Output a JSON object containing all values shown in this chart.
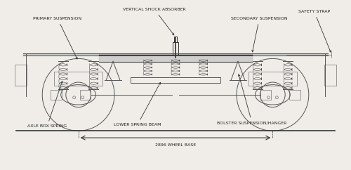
{
  "bg_color": "#f0ede8",
  "line_color": "#555555",
  "dark_line": "#333333",
  "figure_width": 5.0,
  "figure_height": 2.42,
  "dpi": 100,
  "labels": {
    "primary_suspension": "PRIMARY SUSPENSION",
    "vertical_shock_absorber": "VERTICAL SHOCK ABSORBER",
    "secondary_suspension": "SECONDARY SUSPENSION",
    "safety_strap": "SAFETY STRAP",
    "axle_box_spring": "AXLE BOX SPRING",
    "lower_spring_beam": "LOWER SPRING BEAM",
    "bolster_suspension": "BOLSTER SUSPENSION/HANGER",
    "wheel_base": "2896 WHEEL BASE"
  },
  "label_fontsize": 4.5,
  "label_color": "#222222"
}
